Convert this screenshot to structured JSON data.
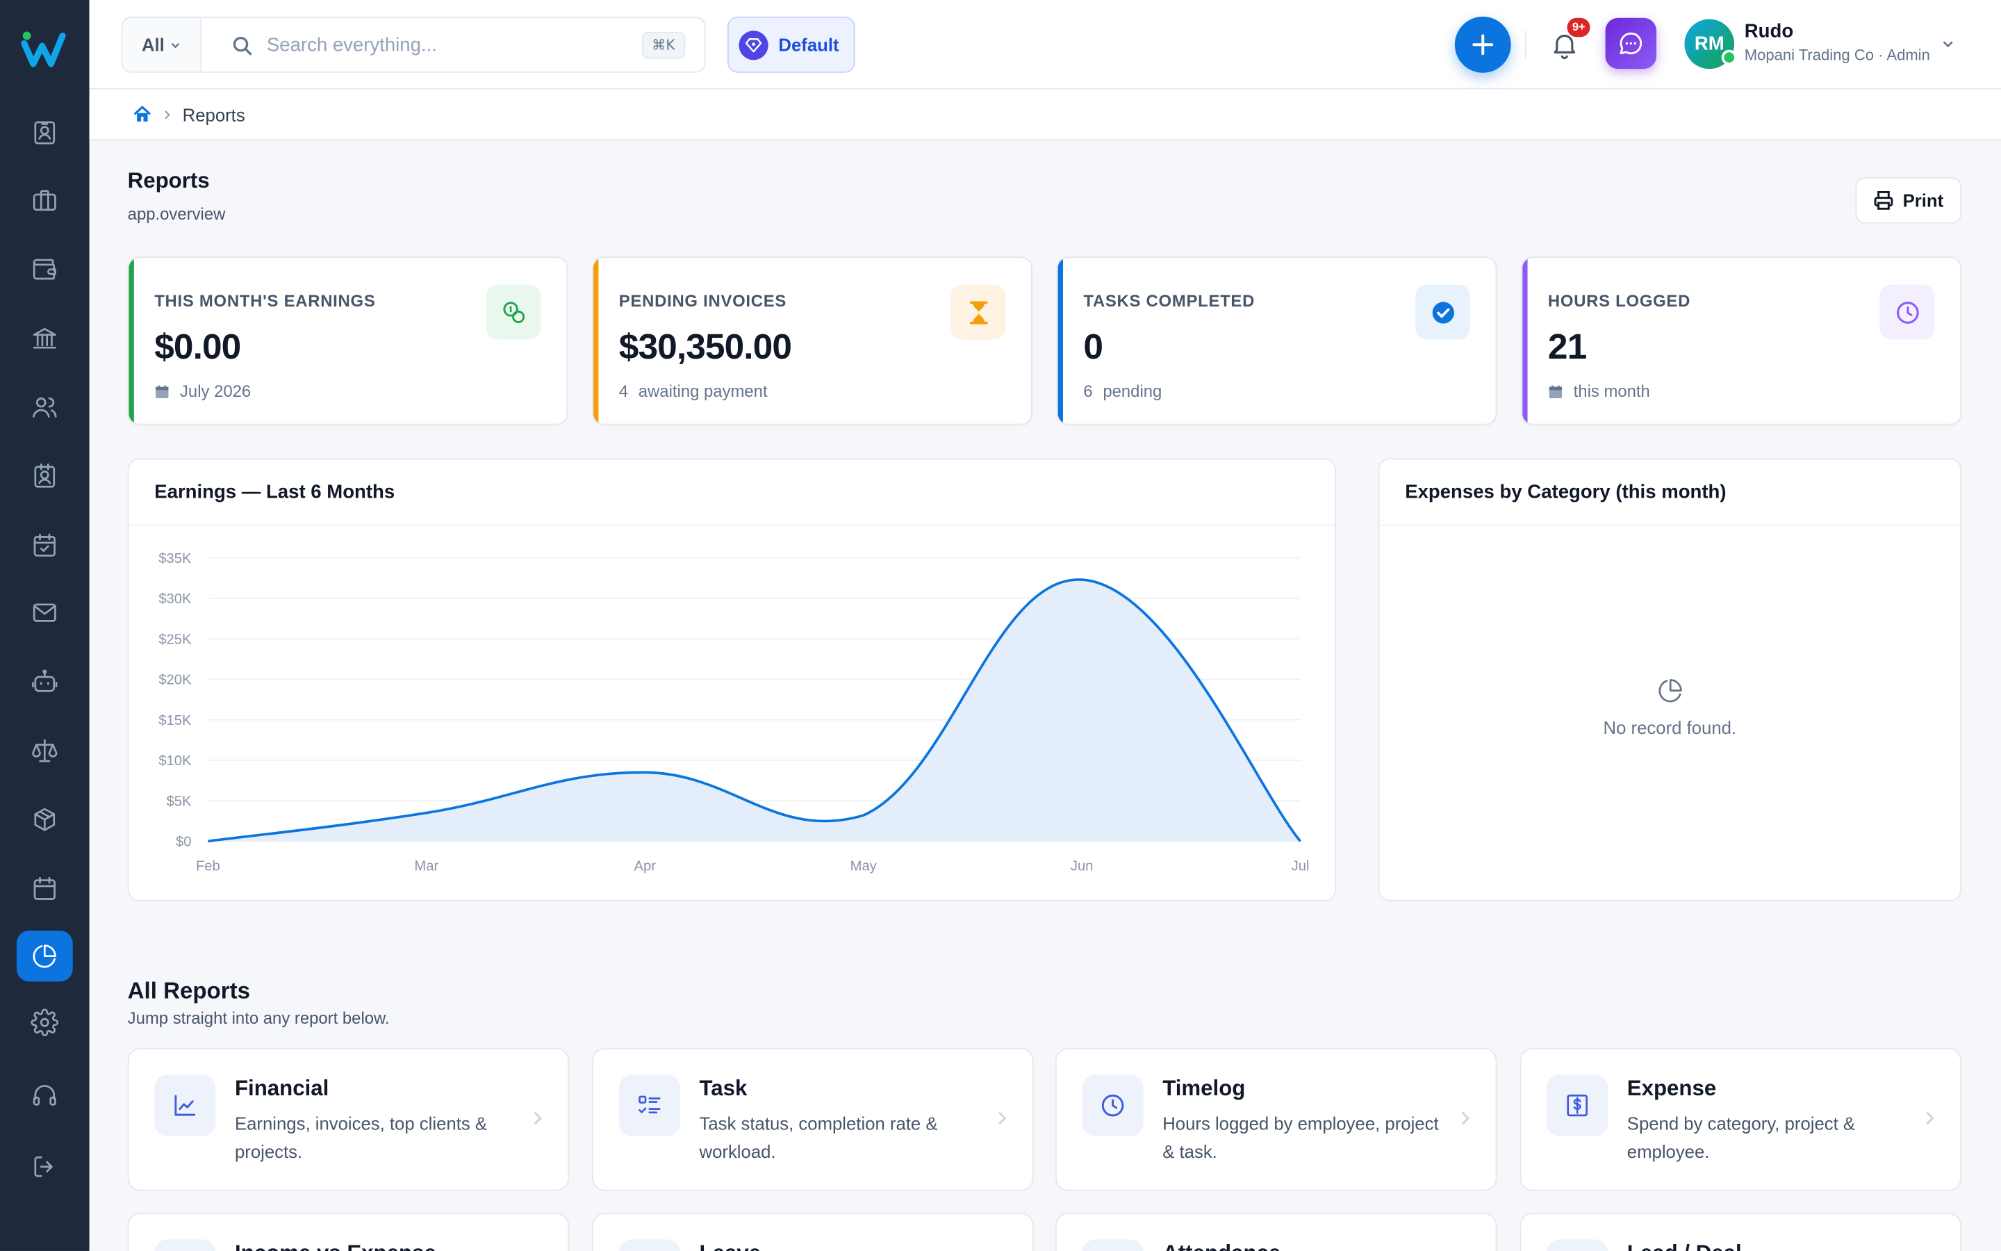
{
  "header": {
    "search_scope": "All",
    "search_placeholder": "Search everything...",
    "search_shortcut": "⌘K",
    "workspace_label": "Default",
    "notification_badge": "9+",
    "user_initials": "RM",
    "user_name": "Rudo",
    "user_subtitle": "Mopani Trading Co · Admin"
  },
  "breadcrumb": {
    "current": "Reports"
  },
  "page": {
    "title": "Reports",
    "subtitle": "app.overview",
    "print_label": "Print"
  },
  "stats": [
    {
      "label": "THIS MONTH'S EARNINGS",
      "value": "$0.00",
      "foot_num": "",
      "foot_text": "July 2026",
      "accent": "#22a34a",
      "icon": "coins-icon"
    },
    {
      "label": "PENDING INVOICES",
      "value": "$30,350.00",
      "foot_num": "4",
      "foot_text": "awaiting payment",
      "accent": "#f59e0b",
      "icon": "hourglass-icon"
    },
    {
      "label": "TASKS COMPLETED",
      "value": "0",
      "foot_num": "6",
      "foot_text": "pending",
      "accent": "#0b74de",
      "icon": "check-circle-icon"
    },
    {
      "label": "HOURS LOGGED",
      "value": "21",
      "foot_num": "",
      "foot_text": "this month",
      "accent": "#8b5cf6",
      "icon": "clock-icon"
    }
  ],
  "earnings_panel": {
    "title": "Earnings — Last 6 Months"
  },
  "expenses_panel": {
    "title": "Expenses by Category (this month)",
    "empty_text": "No record found."
  },
  "chart_data": {
    "type": "area",
    "title": "Earnings — Last 6 Months",
    "categories": [
      "Feb",
      "Mar",
      "Apr",
      "May",
      "Jun",
      "Jul"
    ],
    "values": [
      0,
      3500,
      8500,
      3200,
      32300,
      0
    ],
    "y_ticks": [
      "$0",
      "$5K",
      "$10K",
      "$15K",
      "$20K",
      "$25K",
      "$30K",
      "$35K"
    ],
    "ylim": [
      0,
      35000
    ],
    "grid": true,
    "line_color": "#0b74de",
    "fill_color": "#e3eefa"
  },
  "all_reports": {
    "title": "All Reports",
    "subtitle": "Jump straight into any report below.",
    "cards": [
      {
        "title": "Financial",
        "desc": "Earnings, invoices, top clients & projects.",
        "icon": "line-chart-icon"
      },
      {
        "title": "Task",
        "desc": "Task status, completion rate & workload.",
        "icon": "task-list-icon"
      },
      {
        "title": "Timelog",
        "desc": "Hours logged by employee, project & task.",
        "icon": "clock-icon"
      },
      {
        "title": "Expense",
        "desc": "Spend by category, project & employee.",
        "icon": "dollar-receipt-icon"
      },
      {
        "title": "Income vs Expense",
        "desc": "",
        "icon": "scale-icon"
      },
      {
        "title": "Leave",
        "desc": "",
        "icon": "calendar-icon"
      },
      {
        "title": "Attendance",
        "desc": "",
        "icon": "user-check-icon"
      },
      {
        "title": "Lead / Deal",
        "desc": "",
        "icon": "funnel-icon"
      }
    ]
  },
  "sidebar": {
    "items": [
      "contact-card-icon",
      "briefcase-icon",
      "wallet-icon",
      "bank-icon",
      "users-icon",
      "id-badge-icon",
      "calendar-check-icon",
      "mail-icon",
      "robot-icon",
      "scale-icon",
      "package-icon",
      "calendar-icon",
      "reports-pie-icon",
      "gear-icon",
      "headset-icon",
      "logout-icon"
    ],
    "active": "reports-pie-icon"
  }
}
